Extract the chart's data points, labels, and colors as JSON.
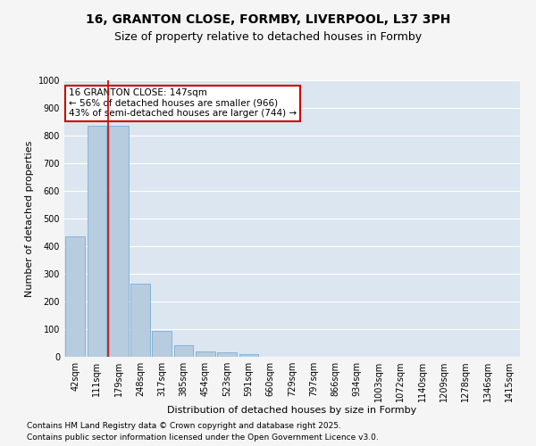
{
  "title_line1": "16, GRANTON CLOSE, FORMBY, LIVERPOOL, L37 3PH",
  "title_line2": "Size of property relative to detached houses in Formby",
  "xlabel": "Distribution of detached houses by size in Formby",
  "ylabel": "Number of detached properties",
  "categories": [
    "42sqm",
    "111sqm",
    "179sqm",
    "248sqm",
    "317sqm",
    "385sqm",
    "454sqm",
    "523sqm",
    "591sqm",
    "660sqm",
    "729sqm",
    "797sqm",
    "866sqm",
    "934sqm",
    "1003sqm",
    "1072sqm",
    "1140sqm",
    "1209sqm",
    "1278sqm",
    "1346sqm",
    "1415sqm"
  ],
  "values": [
    435,
    835,
    835,
    265,
    95,
    42,
    20,
    15,
    10,
    0,
    0,
    0,
    0,
    0,
    0,
    0,
    0,
    0,
    0,
    0,
    0
  ],
  "bar_color": "#b8ccdf",
  "bar_edge_color": "#7aafd4",
  "vline_position": 1.5,
  "vline_color": "#cc0000",
  "annotation_text": "16 GRANTON CLOSE: 147sqm\n← 56% of detached houses are smaller (966)\n43% of semi-detached houses are larger (744) →",
  "annotation_box_facecolor": "#ffffff",
  "annotation_box_edgecolor": "#cc0000",
  "ylim": [
    0,
    1000
  ],
  "yticks": [
    0,
    100,
    200,
    300,
    400,
    500,
    600,
    700,
    800,
    900,
    1000
  ],
  "plot_bg_color": "#dce6f0",
  "fig_bg_color": "#f5f5f5",
  "grid_color": "#ffffff",
  "footer_line1": "Contains HM Land Registry data © Crown copyright and database right 2025.",
  "footer_line2": "Contains public sector information licensed under the Open Government Licence v3.0.",
  "title_fontsize": 10,
  "subtitle_fontsize": 9,
  "axis_label_fontsize": 8,
  "tick_fontsize": 7,
  "annotation_fontsize": 7.5,
  "footer_fontsize": 6.5
}
